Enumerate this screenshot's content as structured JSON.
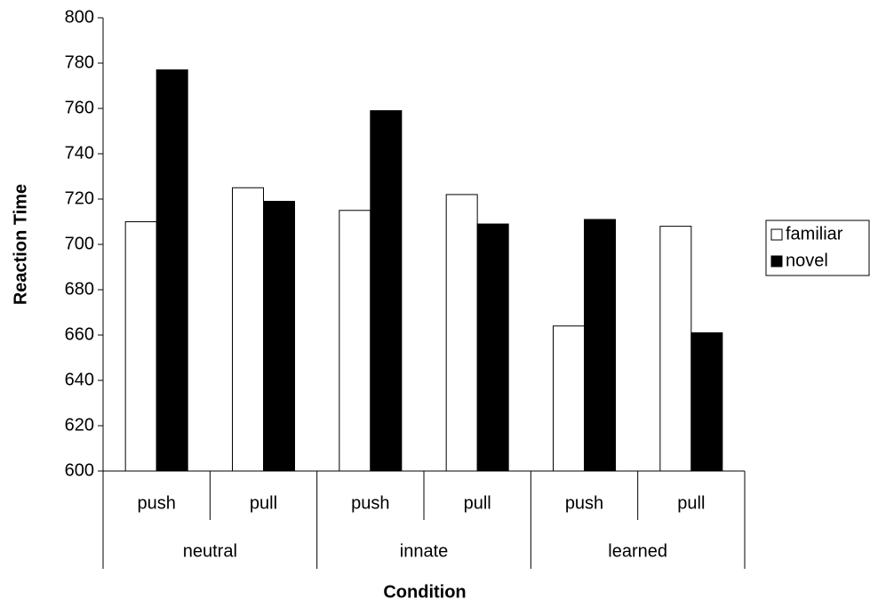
{
  "chart_data": {
    "type": "bar",
    "x_label": "Condition",
    "y_label": "Reaction Time",
    "categories": [
      "push",
      "pull",
      "push",
      "pull",
      "push",
      "pull"
    ],
    "groups": [
      "neutral",
      "innate",
      "learned"
    ],
    "series": [
      {
        "name": "familiar",
        "color": "#ffffff",
        "values": [
          710,
          725,
          715,
          722,
          664,
          708
        ]
      },
      {
        "name": "novel",
        "color": "#000000",
        "values": [
          777,
          719,
          759,
          709,
          711,
          661
        ]
      }
    ],
    "ylim": [
      600,
      800
    ],
    "yticks": [
      600,
      620,
      640,
      660,
      680,
      700,
      720,
      740,
      760,
      780,
      800
    ],
    "grid": false,
    "legend": "right"
  }
}
